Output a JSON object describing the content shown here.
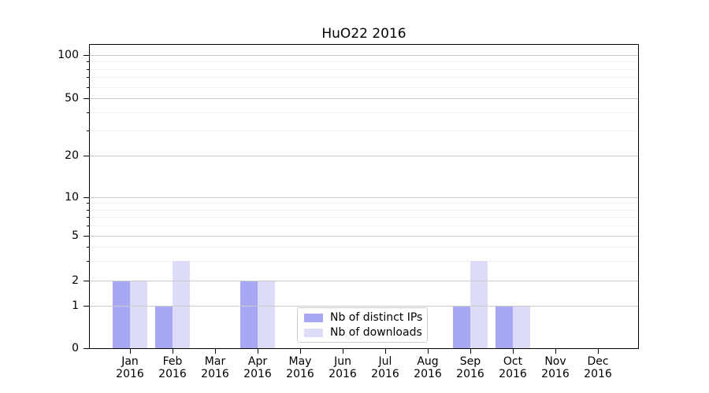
{
  "window": {
    "background": "#ffffff"
  },
  "chart_data": {
    "type": "bar",
    "title": "HuO22 2016",
    "categories": [
      "Jan 2016",
      "Feb 2016",
      "Mar 2016",
      "Apr 2016",
      "May 2016",
      "Jun 2016",
      "Jul 2016",
      "Aug 2016",
      "Sep 2016",
      "Oct 2016",
      "Nov 2016",
      "Dec 2016"
    ],
    "x_tick_line1": [
      "Jan",
      "Feb",
      "Mar",
      "Apr",
      "May",
      "Jun",
      "Jul",
      "Aug",
      "Sep",
      "Oct",
      "Nov",
      "Dec"
    ],
    "x_tick_line2": "2016",
    "series": [
      {
        "name": "Nb of distinct IPs",
        "color": "#a7a7f3",
        "values": [
          2,
          1,
          0,
          2,
          0,
          0,
          0,
          0,
          1,
          1,
          0,
          0
        ]
      },
      {
        "name": "Nb of downloads",
        "color": "#dcdcf9",
        "values": [
          2,
          3,
          0,
          2,
          0,
          0,
          0,
          0,
          3,
          1,
          0,
          0
        ]
      }
    ],
    "yscale": "symlog",
    "ylim": [
      0,
      115
    ],
    "y_ticks": [
      0,
      1,
      2,
      5,
      10,
      20,
      50,
      100
    ],
    "y_minor_gridlines": [
      3,
      4,
      6,
      7,
      8,
      9,
      30,
      40,
      60,
      70,
      80,
      90
    ],
    "grid": true,
    "legend": {
      "position": "lower-center",
      "entries": [
        "Nb of distinct IPs",
        "Nb of downloads"
      ]
    },
    "colors": {
      "major_grid": "#cccccc",
      "minor_grid": "#f0f0f0",
      "axis": "#000000",
      "legend_border": "#cccccc"
    }
  }
}
